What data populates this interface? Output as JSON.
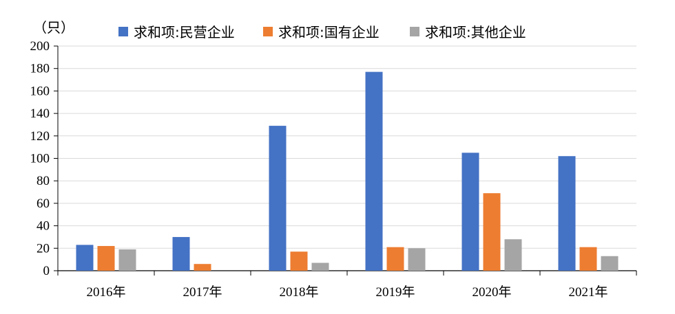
{
  "chart_data": {
    "type": "bar",
    "unit_label": "（只）",
    "categories": [
      "2016年",
      "2017年",
      "2018年",
      "2019年",
      "2020年",
      "2021年"
    ],
    "series": [
      {
        "name": "求和项:民营企业",
        "color": "#4472C4",
        "values": [
          23,
          30,
          129,
          177,
          105,
          102
        ]
      },
      {
        "name": "求和项:国有企业",
        "color": "#ED7D31",
        "values": [
          22,
          6,
          17,
          21,
          69,
          21
        ]
      },
      {
        "name": "求和项:其他企业",
        "color": "#A5A5A5",
        "values": [
          19,
          0,
          7,
          20,
          28,
          13
        ]
      }
    ],
    "ylim": [
      0,
      200
    ],
    "yticks": [
      0,
      20,
      40,
      60,
      80,
      100,
      120,
      140,
      160,
      180,
      200
    ],
    "grid": true,
    "legend_position": "top"
  }
}
